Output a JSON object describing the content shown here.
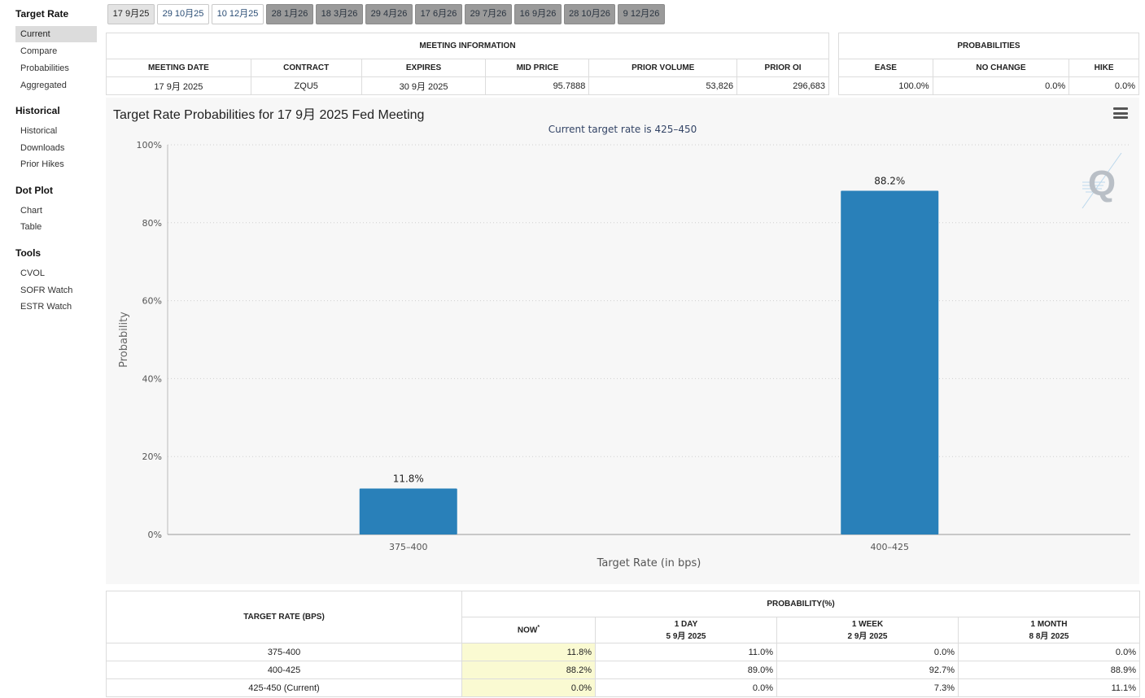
{
  "sidebar": {
    "sections": [
      {
        "title": "Target Rate",
        "items": [
          {
            "label": "Current",
            "active": true
          },
          {
            "label": "Compare"
          },
          {
            "label": "Probabilities"
          },
          {
            "label": "Aggregated"
          }
        ]
      },
      {
        "title": "Historical",
        "items": [
          {
            "label": "Historical"
          },
          {
            "label": "Downloads"
          },
          {
            "label": "Prior Hikes"
          }
        ]
      },
      {
        "title": "Dot Plot",
        "items": [
          {
            "label": "Chart"
          },
          {
            "label": "Table"
          }
        ]
      },
      {
        "title": "Tools",
        "items": [
          {
            "label": "CVOL"
          },
          {
            "label": "SOFR Watch"
          },
          {
            "label": "ESTR Watch"
          }
        ]
      }
    ]
  },
  "date_tabs": [
    {
      "label": "17 9月25",
      "state": "selected"
    },
    {
      "label": "29 10月25",
      "state": "open"
    },
    {
      "label": "10 12月25",
      "state": "open"
    },
    {
      "label": "28 1月26",
      "state": "grey"
    },
    {
      "label": "18 3月26",
      "state": "grey"
    },
    {
      "label": "29 4月26",
      "state": "grey"
    },
    {
      "label": "17 6月26",
      "state": "grey"
    },
    {
      "label": "29 7月26",
      "state": "grey"
    },
    {
      "label": "16 9月26",
      "state": "grey"
    },
    {
      "label": "28 10月26",
      "state": "grey"
    },
    {
      "label": "9 12月26",
      "state": "grey"
    }
  ],
  "meeting_info": {
    "title": "MEETING INFORMATION",
    "headers": [
      "MEETING DATE",
      "CONTRACT",
      "EXPIRES",
      "MID PRICE",
      "PRIOR VOLUME",
      "PRIOR OI"
    ],
    "row": [
      "17 9月 2025",
      "ZQU5",
      "30 9月 2025",
      "95.7888",
      "53,826",
      "296,683"
    ]
  },
  "probabilities": {
    "title": "PROBABILITIES",
    "headers": [
      "EASE",
      "NO CHANGE",
      "HIKE"
    ],
    "row": [
      "100.0%",
      "0.0%",
      "0.0%"
    ]
  },
  "chart_data": {
    "type": "bar",
    "title": "Target Rate Probabilities for 17 9月 2025 Fed Meeting",
    "subtitle": "Current target rate is 425–450",
    "xlabel": "Target Rate (in bps)",
    "ylabel": "Probability",
    "categories": [
      "375–400",
      "400–425"
    ],
    "values": [
      11.8,
      88.2
    ],
    "data_labels": [
      "11.8%",
      "88.2%"
    ],
    "ylim": [
      0,
      100
    ],
    "yticks": [
      0,
      20,
      40,
      60,
      80,
      100
    ],
    "ytick_labels": [
      "0%",
      "20%",
      "40%",
      "60%",
      "80%",
      "100%"
    ],
    "grid": true,
    "bar_color": "#2980b9"
  },
  "prob_table": {
    "col_target": "TARGET RATE (BPS)",
    "group_header": "PROBABILITY(%)",
    "cols": [
      {
        "line1": "NOW",
        "sup": "*",
        "line2": ""
      },
      {
        "line1": "1 DAY",
        "line2": "5 9月 2025"
      },
      {
        "line1": "1 WEEK",
        "line2": "2 9月 2025"
      },
      {
        "line1": "1 MONTH",
        "line2": "8 8月 2025"
      }
    ],
    "rows": [
      {
        "rate": "375-400",
        "values": [
          "11.8%",
          "11.0%",
          "0.0%",
          "0.0%"
        ]
      },
      {
        "rate": "400-425",
        "values": [
          "88.2%",
          "89.0%",
          "92.7%",
          "88.9%"
        ]
      },
      {
        "rate": "425-450 (Current)",
        "values": [
          "0.0%",
          "0.0%",
          "7.3%",
          "11.1%"
        ]
      }
    ]
  },
  "colors": {
    "accent": "#2980b9",
    "now_highlight": "#fafad2",
    "panel_bg": "#f7f7f7"
  }
}
